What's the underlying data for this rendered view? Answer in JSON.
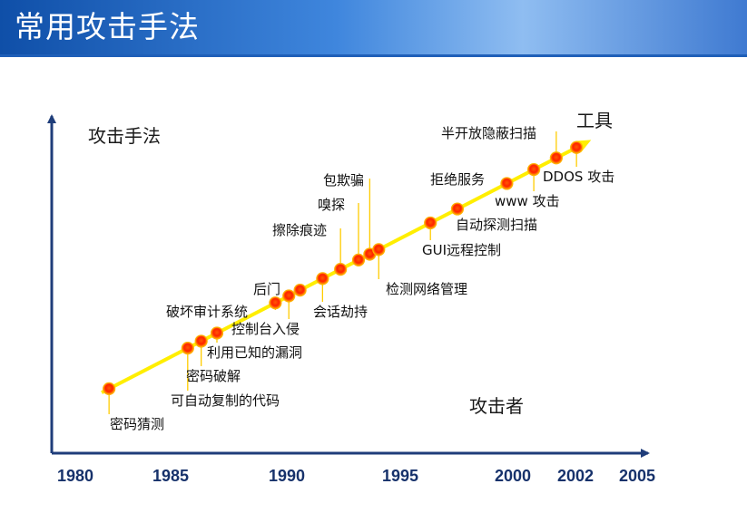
{
  "title": "常用攻击手法",
  "chart_data": {
    "type": "scatter",
    "xlim": [
      1980,
      2005
    ],
    "x_ticks": [
      "1980",
      "1985",
      "1990",
      "1995",
      "2000",
      "2002",
      "2005"
    ],
    "annotations": {
      "y_top": "攻击手法",
      "top_right": "工具",
      "bottom_right": "攻击者"
    },
    "trend": "rising line from lower-left to upper-right",
    "points": [
      {
        "label": "密码猜测",
        "x": 1981.5
      },
      {
        "label": "可自动复制的代码",
        "x": 1985
      },
      {
        "label": "密码破解",
        "x": 1985.6
      },
      {
        "label": "利用已知的漏洞",
        "x": 1986.3
      },
      {
        "label": "破坏审计系统",
        "x": 1988.9
      },
      {
        "label": "控制台入侵",
        "x": 1989.5
      },
      {
        "label": "后门",
        "x": 1990
      },
      {
        "label": "会话劫持",
        "x": 1991
      },
      {
        "label": "擦除痕迹",
        "x": 1991.8
      },
      {
        "label": "嗅探",
        "x": 1992.6
      },
      {
        "label": "包欺骗",
        "x": 1993.1
      },
      {
        "label": "检测网络管理",
        "x": 1993.5
      },
      {
        "label": "GUI远程控制",
        "x": 1995.8
      },
      {
        "label": "自动探测扫描",
        "x": 1997
      },
      {
        "label": "拒绝服务",
        "x": 1999.2
      },
      {
        "label": "www 攻击",
        "x": 2000.4
      },
      {
        "label": "半开放隐蔽扫描",
        "x": 2001.4
      },
      {
        "label": "DDOS 攻击",
        "x": 2002.3
      }
    ],
    "colors": {
      "trend_line": "#ffee00",
      "point_fill": "#ff2200",
      "point_glow": "#ffb000",
      "axis": "#1f3d7a",
      "tick_text": "#17326b"
    }
  }
}
